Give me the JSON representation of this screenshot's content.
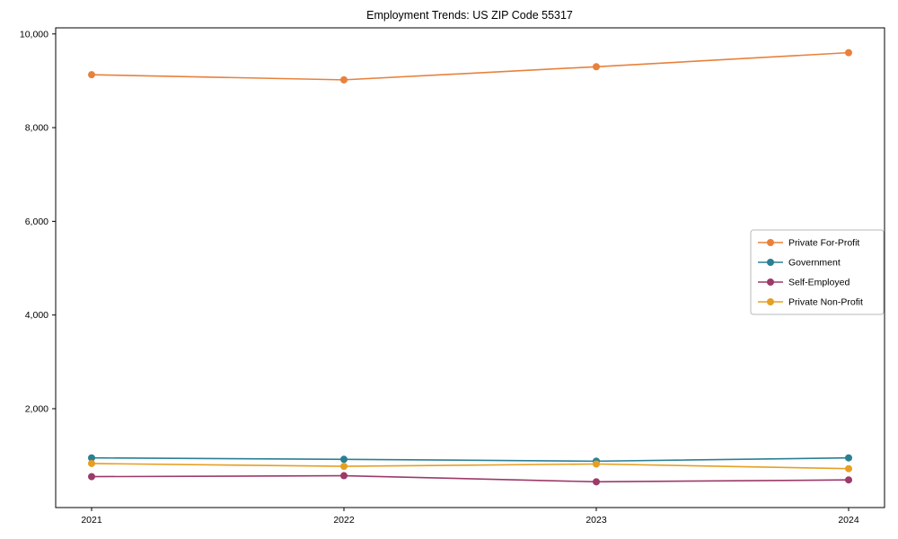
{
  "chart_data": {
    "type": "line",
    "title": "Employment Trends: US ZIP Code 55317",
    "xlabel": "",
    "ylabel": "",
    "categories": [
      "2021",
      "2022",
      "2023",
      "2024"
    ],
    "series": [
      {
        "name": "Private For-Profit",
        "color": "#e8813c",
        "values": [
          9130,
          9020,
          9300,
          9600
        ]
      },
      {
        "name": "Government",
        "color": "#2b7f93",
        "values": [
          950,
          920,
          880,
          950
        ]
      },
      {
        "name": "Self-Employed",
        "color": "#9c3a69",
        "values": [
          550,
          570,
          440,
          480
        ]
      },
      {
        "name": "Private Non-Profit",
        "color": "#e5a024",
        "values": [
          830,
          770,
          820,
          720
        ]
      }
    ],
    "ylim": [
      -110,
      10130
    ],
    "yticks": [
      2000,
      4000,
      6000,
      8000,
      10000
    ],
    "grid": false,
    "legend_position": "center-right",
    "marker": "circle"
  }
}
